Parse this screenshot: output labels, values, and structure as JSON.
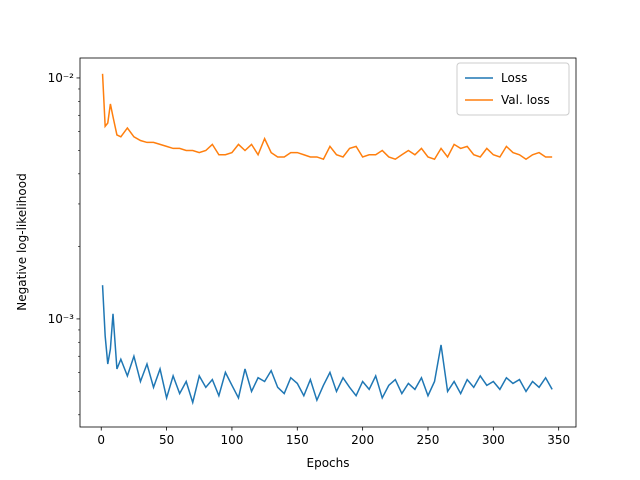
{
  "chart_data": {
    "type": "line",
    "x_label": "Epochs",
    "y_label": "Negative log-likelihood",
    "x": [
      1,
      3,
      5,
      7,
      9,
      12,
      15,
      20,
      25,
      30,
      35,
      40,
      45,
      50,
      55,
      60,
      65,
      70,
      75,
      80,
      85,
      90,
      95,
      100,
      105,
      110,
      115,
      120,
      125,
      130,
      135,
      140,
      145,
      150,
      155,
      160,
      165,
      170,
      175,
      180,
      185,
      190,
      195,
      200,
      205,
      210,
      215,
      220,
      225,
      230,
      235,
      240,
      245,
      250,
      255,
      260,
      265,
      270,
      275,
      280,
      285,
      290,
      295,
      300,
      305,
      310,
      315,
      320,
      325,
      330,
      335,
      340,
      345
    ],
    "series": [
      {
        "name": "Loss",
        "color": "#1f77b4",
        "values": [
          0.00138,
          0.00085,
          0.00065,
          0.00075,
          0.00105,
          0.00062,
          0.00068,
          0.00058,
          0.0007,
          0.00055,
          0.00065,
          0.00052,
          0.00062,
          0.00047,
          0.00058,
          0.00049,
          0.00055,
          0.00045,
          0.00058,
          0.00052,
          0.00056,
          0.00048,
          0.0006,
          0.00053,
          0.00047,
          0.00062,
          0.0005,
          0.00057,
          0.00055,
          0.00061,
          0.00052,
          0.00049,
          0.00057,
          0.00054,
          0.00048,
          0.00056,
          0.00046,
          0.00053,
          0.0006,
          0.0005,
          0.00057,
          0.00052,
          0.00048,
          0.00055,
          0.00051,
          0.00058,
          0.00047,
          0.00053,
          0.00056,
          0.00049,
          0.00054,
          0.00051,
          0.00057,
          0.00048,
          0.00055,
          0.00078,
          0.0005,
          0.00055,
          0.00049,
          0.00056,
          0.00052,
          0.00058,
          0.00053,
          0.00055,
          0.00051,
          0.00057,
          0.00054,
          0.00056,
          0.0005,
          0.00055,
          0.00052,
          0.00057,
          0.00051
        ]
      },
      {
        "name": "Val. loss",
        "color": "#ff7f0e",
        "values": [
          0.0104,
          0.0063,
          0.0065,
          0.0078,
          0.0069,
          0.0058,
          0.0057,
          0.0062,
          0.0057,
          0.0055,
          0.0054,
          0.0054,
          0.0053,
          0.0052,
          0.0051,
          0.0051,
          0.005,
          0.005,
          0.0049,
          0.005,
          0.0053,
          0.0048,
          0.0048,
          0.0049,
          0.0053,
          0.005,
          0.0053,
          0.0048,
          0.0056,
          0.0049,
          0.0047,
          0.0047,
          0.0049,
          0.0049,
          0.0048,
          0.0047,
          0.0047,
          0.0046,
          0.0052,
          0.0048,
          0.0047,
          0.0051,
          0.0052,
          0.0047,
          0.0048,
          0.0048,
          0.005,
          0.0047,
          0.0046,
          0.0048,
          0.005,
          0.0048,
          0.0051,
          0.0047,
          0.0046,
          0.0051,
          0.0047,
          0.0053,
          0.0051,
          0.0052,
          0.0048,
          0.0047,
          0.0051,
          0.0048,
          0.0047,
          0.0052,
          0.0049,
          0.0048,
          0.0046,
          0.0048,
          0.0049,
          0.0047,
          0.0047
        ]
      }
    ],
    "xlim": [
      -16.25,
      363.25
    ],
    "xticks": [
      0,
      50,
      100,
      150,
      200,
      250,
      300,
      350
    ],
    "ylim": [
      0.000356,
      0.0121
    ],
    "yscale": "log",
    "yticks": [
      {
        "value": 0.001,
        "label": "10⁻³"
      },
      {
        "value": 0.01,
        "label": "10⁻²"
      }
    ],
    "yminor_ticks": [
      0.0004,
      0.0005,
      0.0006,
      0.0007,
      0.0008,
      0.0009,
      0.002,
      0.003,
      0.004,
      0.005,
      0.006,
      0.007,
      0.008,
      0.009
    ],
    "legend": "upper right"
  }
}
